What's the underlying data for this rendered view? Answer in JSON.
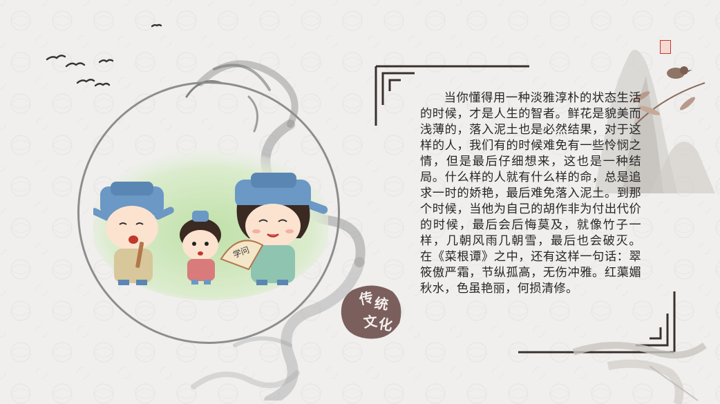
{
  "body_text": "当你懂得用一种淡雅淳朴的状态生活的时候，才是人生的智者。鲜花是貌美而浅薄的，落入泥土也是必然结果，对于这样的人，我们有的时候难免有一些怜悯之情，但是最后仔细想来，这也是一种结局。什么样的人就有什么样的命，总是追求一时的娇艳，最后难免落入泥土。到那个时候，当他为自己的胡作非为付出代价的时候，最后会后悔莫及，就像竹子一样，几朝风雨几朝雪，最后也会破灭。 在《菜根谭》之中，还有这样一句话：翠筱傲严霜，节纵孤高，无伤冲雅。红蕖媚秋水，色虽艳丽，何损清修。",
  "seal": {
    "chars": [
      "传",
      "统",
      "文",
      "化"
    ],
    "color": "#7a5f5c"
  },
  "fan_text": "学问",
  "colors": {
    "background": "#f0efee",
    "frame_line": "#8d8d8d",
    "text": "#262626",
    "hat_blue": "#6b98c4",
    "seal_brown": "#7a5f5c"
  },
  "icons": [
    "flying-birds-icon",
    "ink-dragon-icon",
    "ink-mountain-icon",
    "red-seal-icon",
    "bird-on-branch-icon",
    "crane-icon"
  ]
}
